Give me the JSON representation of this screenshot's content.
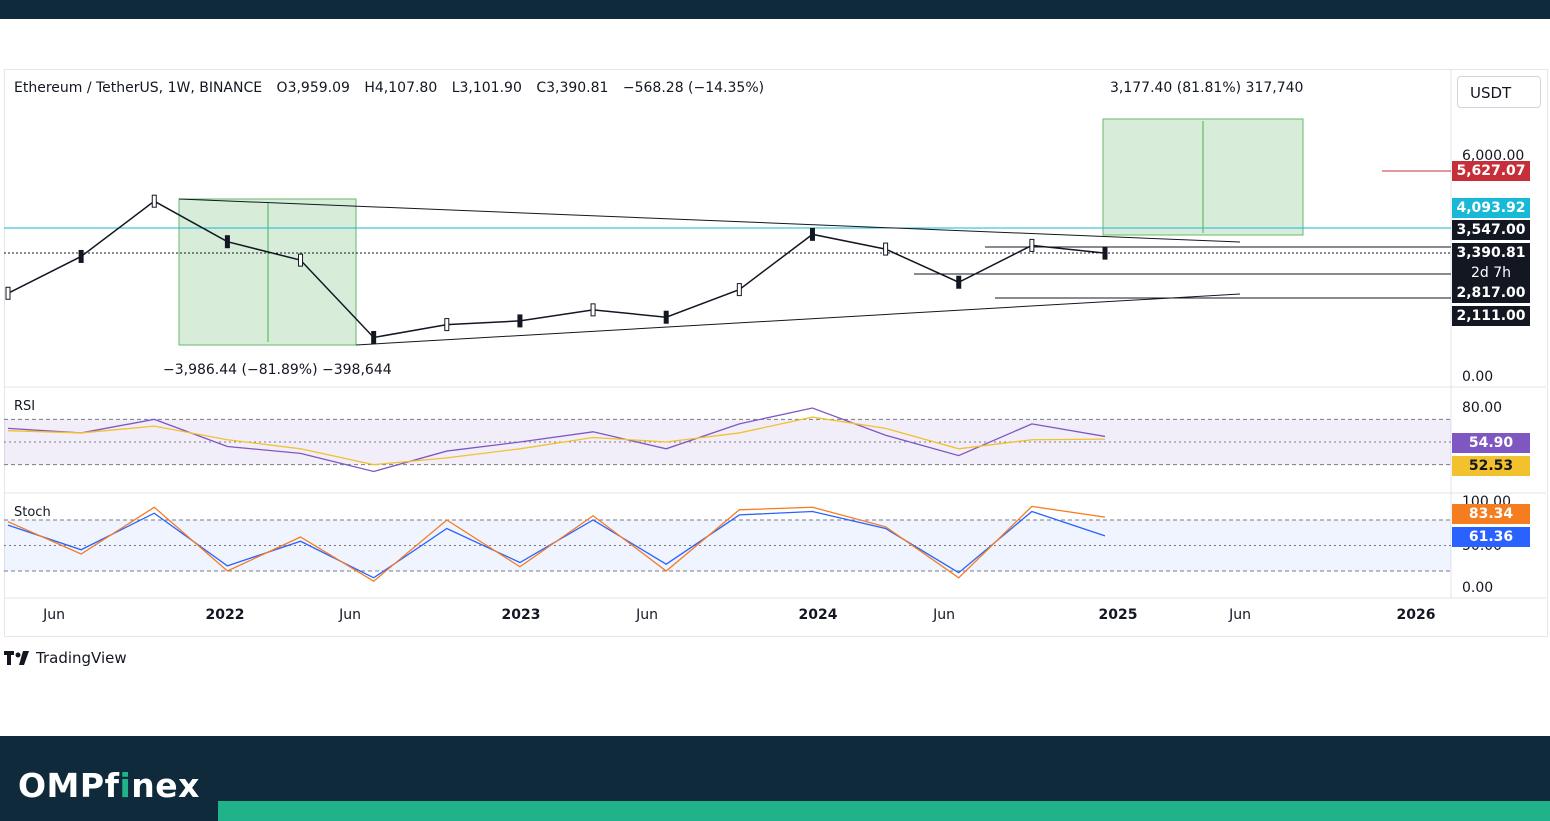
{
  "header": {
    "symbol": "Ethereum / TetherUS, 1W, BINANCE",
    "open": "O3,959.09",
    "high": "H4,107.80",
    "low": "L3,101.90",
    "close": "C3,390.81",
    "change": "−568.28 (−14.35%)"
  },
  "currency": "USDT",
  "measurements": {
    "up": "3,177.40 (81.81%) 317,740",
    "down": "−3,986.44 (−81.89%) −398,644"
  },
  "indicators": {
    "rsi_label": "RSI",
    "stoch_label": "Stoch"
  },
  "price_tags": {
    "target": "5,627.07",
    "resistance_cyan": "4,093.92",
    "level_1": "3,547.00",
    "last": "3,390.81",
    "countdown": "2d 7h",
    "level_2": "2,817.00",
    "level_3": "2,111.00",
    "target_color": "#c62f3a",
    "cyan_color": "#17b9d6"
  },
  "price_axis": {
    "top": "6,000.00",
    "bottom": "0.00"
  },
  "rsi_axis": {
    "top": "80.00",
    "rsi_value": "54.90",
    "rsi_ma_value": "52.53",
    "rsi_color": "#7e57c2",
    "rsi_ma_color": "#f2c12e"
  },
  "stoch_axis": {
    "top": "100.00",
    "mid": "50.00",
    "bottom": "0.00",
    "k_value": "83.34",
    "d_value": "61.36",
    "k_color": "#f57c1f",
    "d_color": "#2962ff"
  },
  "x_axis": [
    {
      "label": "Jun",
      "bold": false
    },
    {
      "label": "2022",
      "bold": true
    },
    {
      "label": "Jun",
      "bold": false
    },
    {
      "label": "2023",
      "bold": true
    },
    {
      "label": "Jun",
      "bold": false
    },
    {
      "label": "2024",
      "bold": true
    },
    {
      "label": "Jun",
      "bold": false
    },
    {
      "label": "2025",
      "bold": true
    },
    {
      "label": "Jun",
      "bold": false
    },
    {
      "label": "2026",
      "bold": true
    }
  ],
  "brand": "TradingView",
  "footer_logo": {
    "part1": "OMPf",
    "part2": "i",
    "part3": "nex"
  },
  "chart_data": {
    "type": "line",
    "title": "Ethereum / TetherUS, 1W, BINANCE",
    "xlabel": "",
    "ylabel": "",
    "x": [
      "2021-06",
      "2021-09",
      "2021-11",
      "2022-01",
      "2022-03",
      "2022-06",
      "2022-09",
      "2023-01",
      "2023-06",
      "2023-10",
      "2024-01",
      "2024-03",
      "2024-06",
      "2024-08",
      "2024-11",
      "2024-12"
    ],
    "series": [
      {
        "values": [
          2300,
          3300,
          4800,
          3700,
          3200,
          1100,
          1450,
          1550,
          1850,
          1650,
          2400,
          3900,
          3500,
          2600,
          3600,
          3390
        ]
      }
    ],
    "levels": [
      5627.07,
      4093.92,
      3547.0,
      3390.81,
      2817.0,
      2111.0
    ],
    "ylim": [
      0,
      6000
    ],
    "rsi": [
      62,
      58,
      70,
      46,
      40,
      24,
      42,
      50,
      59,
      44,
      66,
      80,
      56,
      38,
      66,
      54.9
    ],
    "rsi_ma": [
      60,
      58,
      64,
      52,
      44,
      30,
      36,
      44,
      54,
      50,
      58,
      72,
      62,
      44,
      52,
      52.53
    ],
    "stoch_k": [
      78,
      40,
      95,
      20,
      60,
      8,
      80,
      25,
      85,
      20,
      92,
      95,
      72,
      12,
      96,
      83.34
    ],
    "stoch_d": [
      74,
      45,
      88,
      26,
      55,
      12,
      70,
      30,
      80,
      28,
      86,
      90,
      70,
      18,
      90,
      61.36
    ]
  }
}
